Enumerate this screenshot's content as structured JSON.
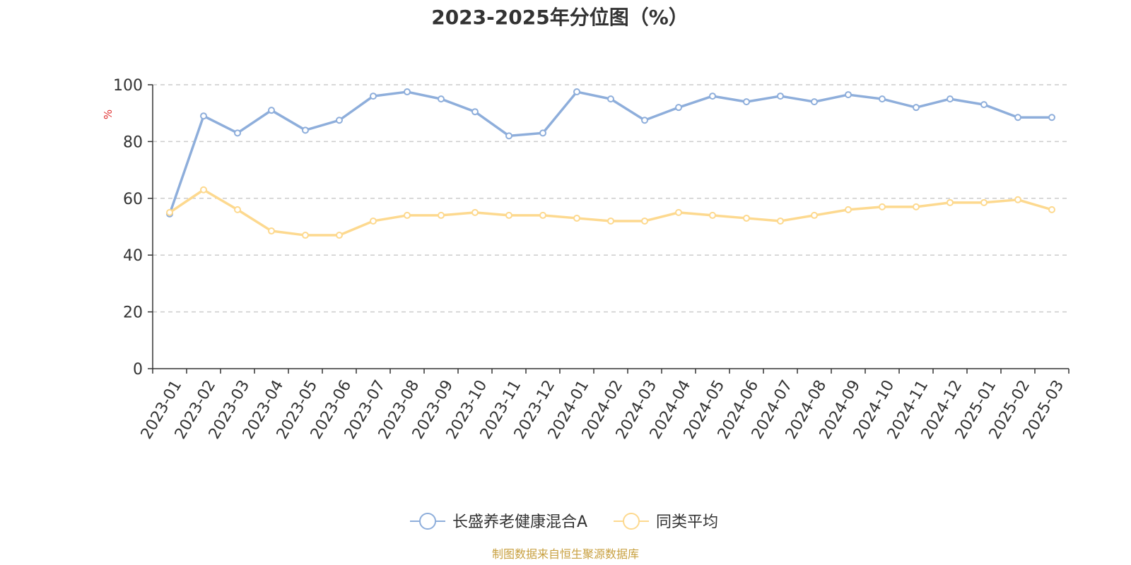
{
  "chart_data": {
    "type": "line",
    "title": "2023-2025年分位图（%）",
    "ylabel": "%",
    "xlabel": "",
    "ylim": [
      0,
      100
    ],
    "yticks": [
      0,
      20,
      40,
      60,
      80,
      100
    ],
    "grid": "horizontal-dashed",
    "legend_position": "bottom-center",
    "categories": [
      "2023-01",
      "2023-02",
      "2023-03",
      "2023-04",
      "2023-05",
      "2023-06",
      "2023-07",
      "2023-08",
      "2023-09",
      "2023-10",
      "2023-11",
      "2023-12",
      "2024-01",
      "2024-02",
      "2024-03",
      "2024-04",
      "2024-05",
      "2024-06",
      "2024-07",
      "2024-08",
      "2024-09",
      "2024-10",
      "2024-11",
      "2024-12",
      "2025-01",
      "2025-02",
      "2025-03"
    ],
    "series": [
      {
        "name": "长盛养老健康混合A",
        "color": "#8eaedb",
        "values": [
          54.5,
          89,
          83,
          91,
          84,
          87.5,
          96,
          97.5,
          95,
          90.5,
          82,
          83,
          97.5,
          95,
          87.5,
          92,
          96,
          94,
          96,
          94,
          96.5,
          95,
          92,
          95,
          93,
          88.5,
          88.5
        ]
      },
      {
        "name": "同类平均",
        "color": "#fdd98f",
        "values": [
          55,
          63,
          56,
          48.5,
          47,
          47,
          52,
          54,
          54,
          55,
          54,
          54,
          53,
          52,
          52,
          55,
          54,
          53,
          52,
          54,
          56,
          57,
          57,
          58.5,
          58.5,
          59.5,
          56
        ]
      }
    ]
  },
  "source_text": "制图数据来自恒生聚源数据库",
  "colors": {
    "axis": "#333333",
    "grid": "#cccccc",
    "unit_label": "#e03030",
    "source_text": "#c8a040"
  }
}
